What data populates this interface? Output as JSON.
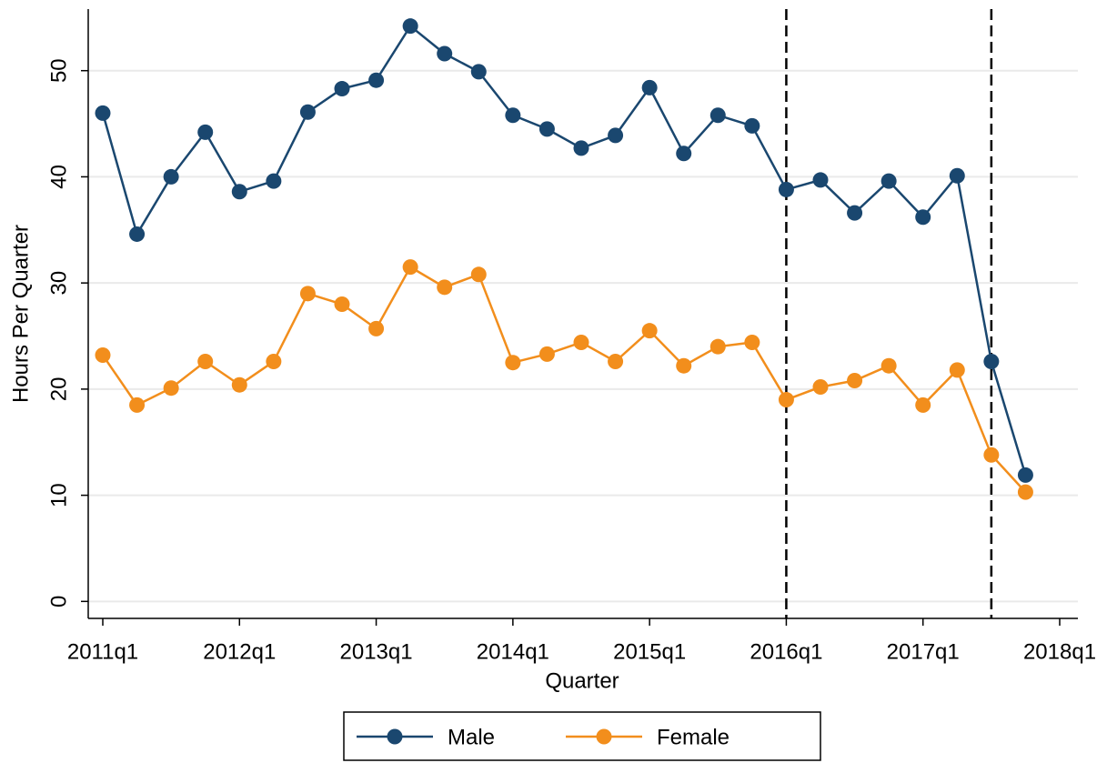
{
  "chart_data": {
    "type": "line",
    "x_label": "Quarter",
    "y_label": "Hours Per Quarter",
    "categories": [
      "2011q1",
      null,
      null,
      null,
      "2012q1",
      null,
      null,
      null,
      "2013q1",
      null,
      null,
      null,
      "2014q1",
      null,
      null,
      null,
      "2015q1",
      null,
      null,
      null,
      "2016q1",
      null,
      null,
      null,
      "2017q1",
      null,
      null,
      null,
      "2018q1"
    ],
    "series": [
      {
        "name": "Male",
        "color": "#1a476f",
        "values": [
          46.0,
          34.6,
          40.0,
          44.2,
          38.6,
          39.6,
          46.1,
          48.3,
          49.1,
          54.2,
          51.6,
          49.9,
          45.8,
          44.5,
          42.7,
          43.9,
          48.4,
          42.2,
          45.8,
          44.8,
          38.8,
          39.7,
          36.6,
          39.6,
          36.2,
          40.1,
          22.6,
          11.9,
          null
        ]
      },
      {
        "name": "Female",
        "color": "#f28e1c",
        "values": [
          23.2,
          18.5,
          20.1,
          22.6,
          20.4,
          22.6,
          29.0,
          28.0,
          25.7,
          31.5,
          29.6,
          30.8,
          22.5,
          23.3,
          24.4,
          22.6,
          25.5,
          22.2,
          24.0,
          24.4,
          19.0,
          20.2,
          20.8,
          22.2,
          18.5,
          21.8,
          13.8,
          10.3,
          null
        ]
      }
    ],
    "vlines": [
      20,
      26
    ],
    "ylim": [
      -1.6,
      55.8
    ],
    "yticks": [
      0,
      10,
      20,
      30,
      40,
      50
    ],
    "grid": true,
    "legend": "bottom"
  }
}
